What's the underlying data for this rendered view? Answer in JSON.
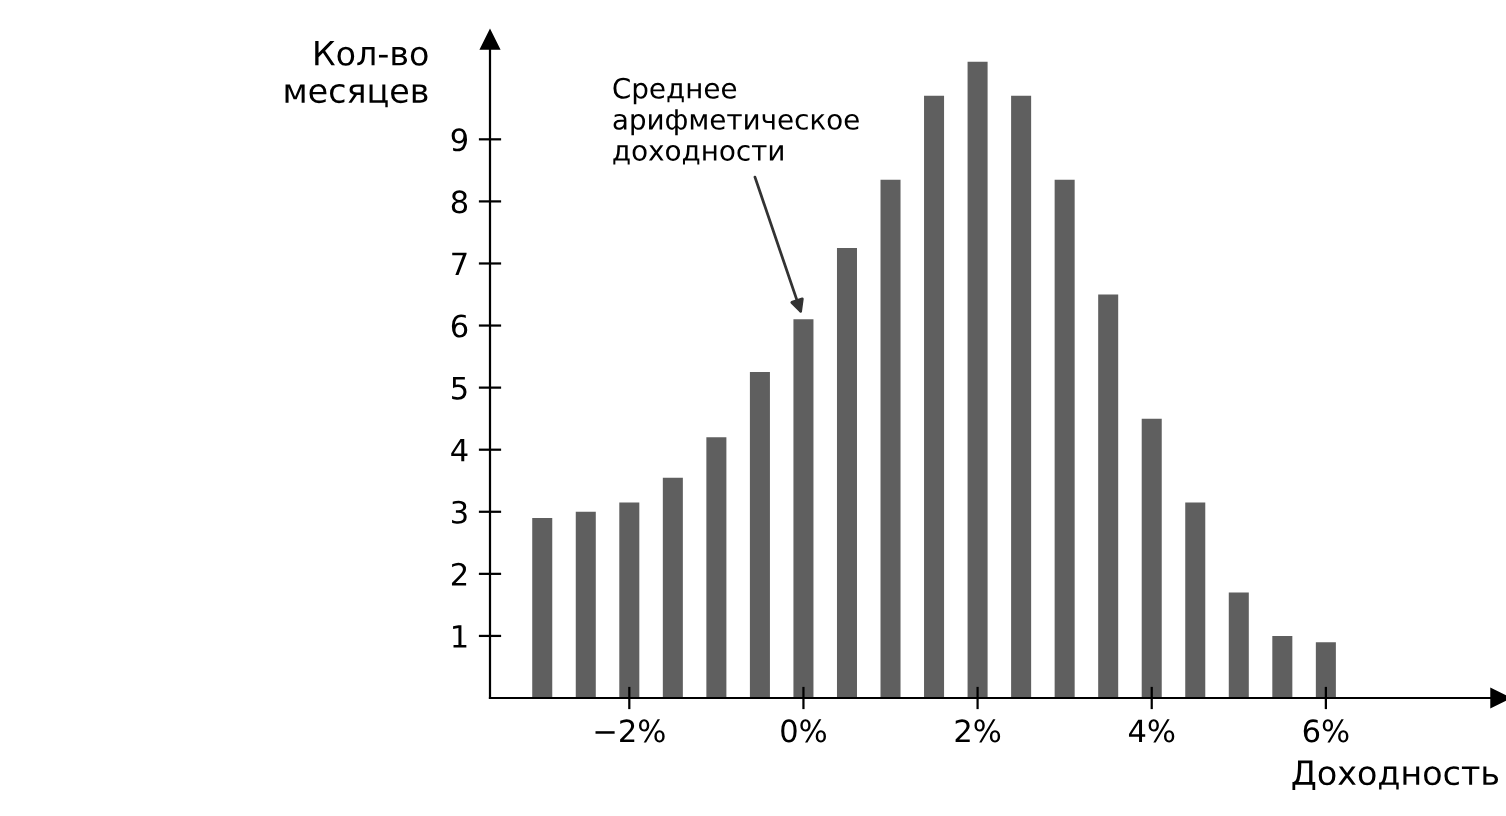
{
  "chart_data": {
    "type": "bar",
    "xlabel": "Доходность",
    "ylabel": "Кол-во\nмесяцев",
    "x": [
      -3,
      -2.5,
      -2,
      -1.5,
      -1,
      -0.5,
      0,
      0.5,
      1,
      1.5,
      2,
      2.5,
      3,
      3.5,
      4,
      4.5,
      5,
      5.5,
      6
    ],
    "values": [
      2.9,
      3.0,
      3.15,
      3.55,
      4.2,
      5.25,
      6.1,
      7.25,
      8.35,
      9.7,
      10.25,
      9.7,
      8.35,
      6.5,
      4.5,
      3.15,
      1.7,
      1.0,
      0.9
    ],
    "color": "#5f5f5f",
    "xlim": [
      -3.6,
      8
    ],
    "ylim": [
      0,
      10.6
    ],
    "xticks": [
      {
        "value": -2,
        "label": "−2%"
      },
      {
        "value": 0,
        "label": "0%"
      },
      {
        "value": 2,
        "label": "2%"
      },
      {
        "value": 4,
        "label": "4%"
      },
      {
        "value": 6,
        "label": "6%"
      }
    ],
    "yticks": [
      1,
      2,
      3,
      4,
      5,
      6,
      7,
      8,
      9
    ],
    "annotations": [
      {
        "text": "Среднее\nарифметическое\nдоходности",
        "x": 0,
        "y": 6.1
      }
    ],
    "grid": false
  }
}
